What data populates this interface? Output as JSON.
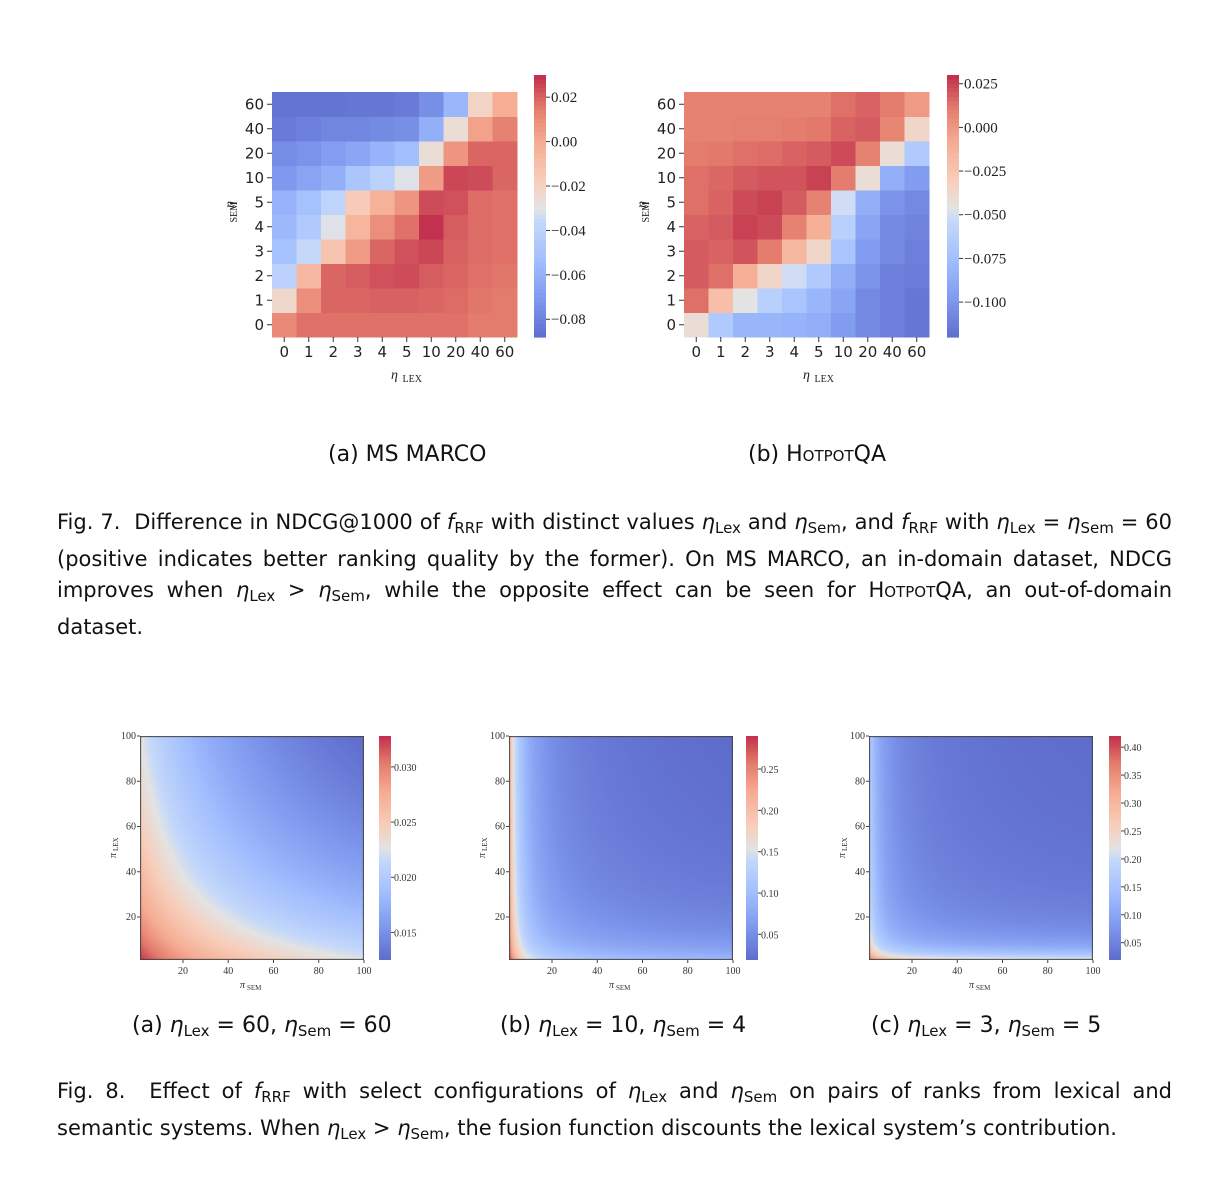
{
  "fig7": {
    "panels": [
      {
        "subcaption": "(a) MS MARCO",
        "y_ticks": [
          "60",
          "40",
          "20",
          "10",
          "5",
          "4",
          "3",
          "2",
          "1",
          "0"
        ],
        "x_ticks": [
          "0",
          "1",
          "2",
          "3",
          "4",
          "5",
          "10",
          "20",
          "40",
          "60"
        ],
        "xlabel": "ηLex",
        "ylabel": "ηSem",
        "colorbar_ticks": [
          "0.02",
          "0.00",
          "−0.02",
          "−0.04",
          "−0.06",
          "−0.08"
        ]
      },
      {
        "subcaption": "(b) HotpotQA",
        "y_ticks": [
          "60",
          "40",
          "20",
          "10",
          "5",
          "4",
          "3",
          "2",
          "1",
          "0"
        ],
        "x_ticks": [
          "0",
          "1",
          "2",
          "3",
          "4",
          "5",
          "10",
          "20",
          "40",
          "60"
        ],
        "xlabel": "ηLex",
        "ylabel": "ηSem",
        "colorbar_ticks": [
          "0.025",
          "0.000",
          "−0.025",
          "−0.050",
          "−0.075",
          "−0.100"
        ]
      }
    ],
    "caption": {
      "label": "Fig. 7.",
      "text": "Difference in NDCG@1000 of fRRF with distinct values ηLex and ηSem, and fRRF with ηLex = ηSem = 60 (positive indicates better ranking quality by the former). On MS MARCO, an in-domain dataset, NDCG improves when ηLex > ηSem, while the opposite effect can be seen for HotpotQA, an out-of-domain dataset."
    }
  },
  "fig8": {
    "panels": [
      {
        "subcaption": "(a) ηLex = 60, ηSem = 60",
        "x_ticks": [
          "20",
          "40",
          "60",
          "80",
          "100"
        ],
        "y_ticks": [
          "100",
          "80",
          "60",
          "40",
          "20"
        ],
        "xlabel": "πSem",
        "ylabel": "πLex",
        "colorbar_ticks": [
          "0.030",
          "0.025",
          "0.020",
          "0.015"
        ]
      },
      {
        "subcaption": "(b) ηLex = 10, ηSem = 4",
        "x_ticks": [
          "20",
          "40",
          "60",
          "80",
          "100"
        ],
        "y_ticks": [
          "100",
          "80",
          "60",
          "40",
          "20"
        ],
        "xlabel": "πSem",
        "ylabel": "πLex",
        "colorbar_ticks": [
          "0.25",
          "0.20",
          "0.15",
          "0.10",
          "0.05"
        ]
      },
      {
        "subcaption": "(c) ηLex = 3, ηSem = 5",
        "x_ticks": [
          "20",
          "40",
          "60",
          "80",
          "100"
        ],
        "y_ticks": [
          "100",
          "80",
          "60",
          "40",
          "20"
        ],
        "xlabel": "πSem",
        "ylabel": "πLex",
        "colorbar_ticks": [
          "0.40",
          "0.35",
          "0.30",
          "0.25",
          "0.20",
          "0.15",
          "0.10",
          "0.05"
        ]
      }
    ],
    "caption": {
      "label": "Fig. 8.",
      "text": "Effect of fRRF with select configurations of ηLex and ηSem on pairs of ranks from lexical and semantic systems. When ηLex > ηSem, the fusion function discounts the lexical system’s contribution."
    }
  },
  "chart_data": [
    {
      "type": "heatmap",
      "title": "(a) MS MARCO",
      "xlabel": "ηLex",
      "ylabel": "ηSem",
      "x": [
        "0",
        "1",
        "2",
        "3",
        "4",
        "5",
        "10",
        "20",
        "40",
        "60"
      ],
      "y": [
        "0",
        "1",
        "2",
        "3",
        "4",
        "5",
        "10",
        "20",
        "40",
        "60"
      ],
      "z": [
        [
          0.012,
          0.018,
          0.018,
          0.018,
          0.018,
          0.018,
          0.018,
          0.018,
          0.016,
          0.016
        ],
        [
          -0.022,
          0.01,
          0.02,
          0.02,
          0.021,
          0.021,
          0.02,
          0.019,
          0.017,
          0.016
        ],
        [
          -0.04,
          -0.006,
          0.02,
          0.022,
          0.024,
          0.025,
          0.022,
          0.02,
          0.018,
          0.017
        ],
        [
          -0.05,
          -0.035,
          -0.012,
          0.006,
          0.02,
          0.024,
          0.026,
          0.021,
          0.019,
          0.018
        ],
        [
          -0.055,
          -0.045,
          -0.03,
          -0.004,
          0.01,
          0.018,
          0.03,
          0.022,
          0.019,
          0.018
        ],
        [
          -0.058,
          -0.05,
          -0.038,
          -0.015,
          -0.002,
          0.008,
          0.025,
          0.024,
          0.019,
          0.018
        ],
        [
          -0.07,
          -0.065,
          -0.06,
          -0.048,
          -0.04,
          -0.03,
          0.006,
          0.026,
          0.025,
          0.02
        ],
        [
          -0.075,
          -0.072,
          -0.068,
          -0.064,
          -0.058,
          -0.052,
          -0.025,
          0.008,
          0.02,
          0.02
        ],
        [
          -0.082,
          -0.08,
          -0.078,
          -0.078,
          -0.076,
          -0.074,
          -0.06,
          -0.025,
          0.004,
          0.014
        ],
        [
          -0.085,
          -0.085,
          -0.085,
          -0.084,
          -0.084,
          -0.082,
          -0.074,
          -0.056,
          -0.02,
          0.0
        ]
      ],
      "zlim": [
        -0.088,
        0.03
      ]
    },
    {
      "type": "heatmap",
      "title": "(b) HotpotQA",
      "xlabel": "ηLex",
      "ylabel": "ηSem",
      "x": [
        "0",
        "1",
        "2",
        "3",
        "4",
        "5",
        "10",
        "20",
        "40",
        "60"
      ],
      "y": [
        "0",
        "1",
        "2",
        "3",
        "4",
        "5",
        "10",
        "20",
        "40",
        "60"
      ],
      "z": [
        [
          -0.04,
          -0.065,
          -0.08,
          -0.08,
          -0.082,
          -0.085,
          -0.095,
          -0.105,
          -0.11,
          -0.115
        ],
        [
          0.015,
          -0.02,
          -0.045,
          -0.06,
          -0.07,
          -0.08,
          -0.09,
          -0.105,
          -0.11,
          -0.115
        ],
        [
          0.02,
          0.015,
          -0.01,
          -0.035,
          -0.05,
          -0.065,
          -0.085,
          -0.1,
          -0.11,
          -0.112
        ],
        [
          0.02,
          0.018,
          0.022,
          0.012,
          -0.015,
          -0.035,
          -0.07,
          -0.095,
          -0.105,
          -0.11
        ],
        [
          0.018,
          0.02,
          0.026,
          0.024,
          0.01,
          -0.01,
          -0.06,
          -0.09,
          -0.105,
          -0.108
        ],
        [
          0.015,
          0.018,
          0.024,
          0.026,
          0.02,
          0.01,
          -0.05,
          -0.085,
          -0.1,
          -0.105
        ],
        [
          0.015,
          0.017,
          0.02,
          0.022,
          0.022,
          0.026,
          0.012,
          -0.04,
          -0.085,
          -0.095
        ],
        [
          0.012,
          0.013,
          0.015,
          0.016,
          0.018,
          0.02,
          0.024,
          0.01,
          -0.04,
          -0.065
        ],
        [
          0.01,
          0.01,
          0.011,
          0.011,
          0.012,
          0.013,
          0.018,
          0.02,
          0.008,
          -0.035
        ],
        [
          0.01,
          0.01,
          0.01,
          0.01,
          0.01,
          0.01,
          0.015,
          0.018,
          0.012,
          0.0
        ]
      ],
      "zlim": [
        -0.12,
        0.03
      ]
    },
    {
      "type": "heatmap",
      "title": "(a) ηLex = 60, ηSem = 60",
      "xlabel": "πSem",
      "ylabel": "πLex",
      "x_range": [
        1,
        100
      ],
      "y_range": [
        1,
        100
      ],
      "function": "1/(ηLex+πLex) + 1/(ηSem+πSem)",
      "eta_lex": 60,
      "eta_sem": 60,
      "zlim": [
        0.0125,
        0.0328
      ]
    },
    {
      "type": "heatmap",
      "title": "(b) ηLex = 10, ηSem = 4",
      "xlabel": "πSem",
      "ylabel": "πLex",
      "x_range": [
        1,
        100
      ],
      "y_range": [
        1,
        100
      ],
      "function": "1/(ηLex+πLex) + 1/(ηSem+πSem)",
      "eta_lex": 10,
      "eta_sem": 4,
      "zlim": [
        0.019,
        0.29
      ]
    },
    {
      "type": "heatmap",
      "title": "(c) ηLex = 3, ηSem = 5",
      "xlabel": "πSem",
      "ylabel": "πLex",
      "x_range": [
        1,
        100
      ],
      "y_range": [
        1,
        100
      ],
      "function": "1/(ηLex+πLex) + 1/(ηSem+πSem)",
      "eta_lex": 3,
      "eta_sem": 5,
      "zlim": [
        0.019,
        0.42
      ]
    }
  ]
}
